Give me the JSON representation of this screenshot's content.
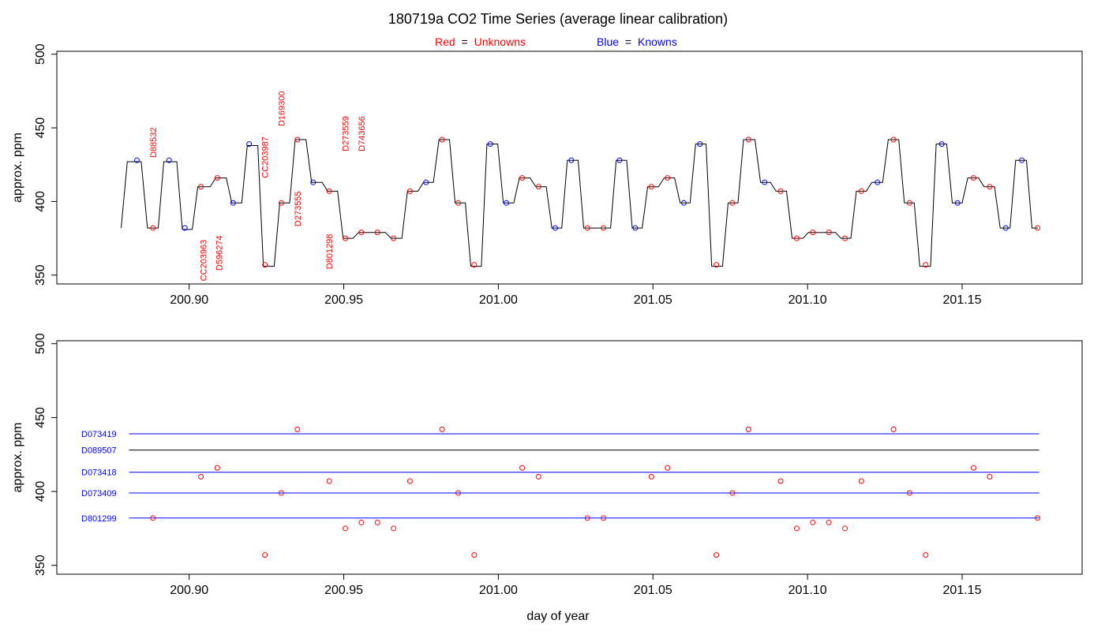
{
  "title": "180719a   CO2 Time Series (average linear calibration)",
  "legend": {
    "red_prefix": "Red",
    "red_word": "Unknowns",
    "blue_prefix": "Blue",
    "blue_word": "Knowns",
    "equals": "="
  },
  "colors": {
    "unknown": "#ff0000",
    "known": "#0000ff",
    "trace": "#000000",
    "axis": "#000000"
  },
  "chart_data": [
    {
      "type": "line",
      "ylabel": "approx. ppm",
      "xlim": [
        200.8572,
        201.1888
      ],
      "ylim": [
        344,
        502
      ],
      "xticks": [
        "200.90",
        "200.95",
        "201.00",
        "201.05",
        "201.10",
        "201.15"
      ],
      "yticks": [
        "350",
        "400",
        "450",
        "500"
      ],
      "trace": [
        [
          200.878,
          382
        ],
        [
          200.88,
          427
        ],
        [
          200.8845,
          427
        ],
        [
          200.8865,
          382
        ],
        [
          200.89,
          382
        ],
        [
          200.8918,
          427
        ],
        [
          200.896,
          427
        ],
        [
          200.8978,
          381
        ],
        [
          200.901,
          381
        ],
        [
          200.9028,
          410
        ],
        [
          200.9068,
          410
        ],
        [
          200.9086,
          416
        ],
        [
          200.912,
          416
        ],
        [
          200.9138,
          399
        ],
        [
          200.917,
          399
        ],
        [
          200.9188,
          438
        ],
        [
          200.9222,
          438
        ],
        [
          200.924,
          356
        ],
        [
          200.9275,
          356
        ],
        [
          200.9293,
          399
        ],
        [
          200.9325,
          399
        ],
        [
          200.9343,
          442
        ],
        [
          200.9378,
          442
        ],
        [
          200.9396,
          413
        ],
        [
          200.943,
          413
        ],
        [
          200.9448,
          407
        ],
        [
          200.948,
          407
        ],
        [
          200.9498,
          375
        ],
        [
          200.953,
          375
        ],
        [
          200.9548,
          379
        ],
        [
          200.9635,
          379
        ],
        [
          200.9653,
          375
        ],
        [
          200.9688,
          375
        ],
        [
          200.9706,
          407
        ],
        [
          200.974,
          407
        ],
        [
          200.9758,
          413
        ],
        [
          200.979,
          413
        ],
        [
          200.9808,
          442
        ],
        [
          200.9842,
          442
        ],
        [
          200.986,
          399
        ],
        [
          200.9893,
          399
        ],
        [
          200.9911,
          356
        ],
        [
          200.9945,
          356
        ],
        [
          200.9963,
          439
        ],
        [
          200.9998,
          439
        ],
        [
          201.0016,
          399
        ],
        [
          201.005,
          399
        ],
        [
          201.0068,
          416
        ],
        [
          201.0103,
          416
        ],
        [
          201.0121,
          410
        ],
        [
          201.0155,
          410
        ],
        [
          201.0173,
          382
        ],
        [
          201.0205,
          382
        ],
        [
          201.0223,
          428
        ],
        [
          201.0258,
          428
        ],
        [
          201.0276,
          382
        ],
        [
          201.0363,
          382
        ],
        [
          201.0381,
          428
        ],
        [
          201.0415,
          428
        ],
        [
          201.0433,
          382
        ],
        [
          201.0465,
          382
        ],
        [
          201.0483,
          410
        ],
        [
          201.0518,
          410
        ],
        [
          201.0536,
          416
        ],
        [
          201.057,
          416
        ],
        [
          201.0588,
          399
        ],
        [
          201.062,
          399
        ],
        [
          201.0638,
          439
        ],
        [
          201.0672,
          439
        ],
        [
          201.069,
          356
        ],
        [
          201.0725,
          356
        ],
        [
          201.0743,
          399
        ],
        [
          201.0775,
          399
        ],
        [
          201.0793,
          442
        ],
        [
          201.083,
          442
        ],
        [
          201.0848,
          413
        ],
        [
          201.088,
          413
        ],
        [
          201.0898,
          407
        ],
        [
          201.0932,
          407
        ],
        [
          201.095,
          375
        ],
        [
          201.0985,
          375
        ],
        [
          201.1003,
          379
        ],
        [
          201.109,
          379
        ],
        [
          201.1108,
          375
        ],
        [
          201.114,
          375
        ],
        [
          201.1158,
          407
        ],
        [
          201.119,
          407
        ],
        [
          201.1208,
          413
        ],
        [
          201.1243,
          413
        ],
        [
          201.1261,
          442
        ],
        [
          201.1295,
          442
        ],
        [
          201.1313,
          399
        ],
        [
          201.1345,
          399
        ],
        [
          201.1363,
          356
        ],
        [
          201.1398,
          356
        ],
        [
          201.1416,
          439
        ],
        [
          201.145,
          439
        ],
        [
          201.1468,
          399
        ],
        [
          201.15,
          399
        ],
        [
          201.1518,
          416
        ],
        [
          201.1553,
          416
        ],
        [
          201.1571,
          410
        ],
        [
          201.1605,
          410
        ],
        [
          201.1623,
          382
        ],
        [
          201.1655,
          382
        ],
        [
          201.1673,
          428
        ],
        [
          201.1708,
          428
        ],
        [
          201.1726,
          382
        ],
        [
          201.1745,
          382
        ]
      ],
      "unknowns": [
        [
          200.8883,
          382
        ],
        [
          200.9038,
          410
        ],
        [
          200.9091,
          416
        ],
        [
          200.9245,
          357
        ],
        [
          200.9298,
          399
        ],
        [
          200.935,
          442
        ],
        [
          200.9453,
          407
        ],
        [
          200.9505,
          375
        ],
        [
          200.9557,
          379
        ],
        [
          200.9609,
          379
        ],
        [
          200.9661,
          375
        ],
        [
          200.9714,
          407
        ],
        [
          200.9818,
          442
        ],
        [
          200.987,
          399
        ],
        [
          200.9922,
          357
        ],
        [
          201.0077,
          416
        ],
        [
          201.013,
          410
        ],
        [
          201.0288,
          382
        ],
        [
          201.034,
          382
        ],
        [
          201.0495,
          410
        ],
        [
          201.0547,
          416
        ],
        [
          201.0705,
          357
        ],
        [
          201.0757,
          399
        ],
        [
          201.0809,
          442
        ],
        [
          201.0913,
          407
        ],
        [
          201.0965,
          375
        ],
        [
          201.1017,
          379
        ],
        [
          201.1069,
          379
        ],
        [
          201.1121,
          375
        ],
        [
          201.1174,
          407
        ],
        [
          201.1278,
          442
        ],
        [
          201.133,
          399
        ],
        [
          201.1382,
          357
        ],
        [
          201.1537,
          416
        ],
        [
          201.1589,
          410
        ],
        [
          201.1744,
          382
        ]
      ],
      "knowns": [
        [
          200.8831,
          428
        ],
        [
          200.8935,
          428
        ],
        [
          200.8986,
          382
        ],
        [
          200.9142,
          399
        ],
        [
          200.9194,
          439
        ],
        [
          200.9401,
          413
        ],
        [
          200.9766,
          413
        ],
        [
          200.9974,
          439
        ],
        [
          201.0026,
          399
        ],
        [
          201.0184,
          382
        ],
        [
          201.0236,
          428
        ],
        [
          201.0392,
          428
        ],
        [
          201.0443,
          382
        ],
        [
          201.06,
          399
        ],
        [
          201.0652,
          439
        ],
        [
          201.0861,
          413
        ],
        [
          201.1226,
          413
        ],
        [
          201.1434,
          439
        ],
        [
          201.1485,
          399
        ],
        [
          201.1641,
          382
        ],
        [
          201.1693,
          428
        ]
      ],
      "labels": [
        {
          "text": "D88532",
          "x": 200.8883,
          "y": 440
        },
        {
          "text": "CC203963",
          "x": 200.9045,
          "y": 360
        },
        {
          "text": "D596274",
          "x": 200.9097,
          "y": 365
        },
        {
          "text": "CC203987",
          "x": 200.9245,
          "y": 430
        },
        {
          "text": "D169300",
          "x": 200.9298,
          "y": 463
        },
        {
          "text": "D273555",
          "x": 200.935,
          "y": 395
        },
        {
          "text": "D801298",
          "x": 200.9453,
          "y": 366
        },
        {
          "text": "D273559",
          "x": 200.9505,
          "y": 446
        },
        {
          "text": "D743656",
          "x": 200.9557,
          "y": 446
        }
      ]
    },
    {
      "type": "scatter",
      "ylabel": "approx. ppm",
      "xlabel": "day of year",
      "xlim": [
        200.8572,
        201.1888
      ],
      "ylim": [
        344,
        502
      ],
      "xticks": [
        "200.90",
        "200.95",
        "201.00",
        "201.05",
        "201.10",
        "201.15"
      ],
      "yticks": [
        "350",
        "400",
        "450",
        "500"
      ],
      "reference_lines": [
        {
          "name": "D073419",
          "value": 439,
          "color": "#0000ff"
        },
        {
          "name": "D089507",
          "value": 428,
          "color": "#000000"
        },
        {
          "name": "D073418",
          "value": 413,
          "color": "#0000ff"
        },
        {
          "name": "D073409",
          "value": 399,
          "color": "#0000ff"
        },
        {
          "name": "D801299",
          "value": 382,
          "color": "#0000ff"
        }
      ],
      "line_x_range": [
        200.8831,
        201.1744
      ],
      "unknowns_ref": "same as panel 1 unknowns"
    }
  ]
}
